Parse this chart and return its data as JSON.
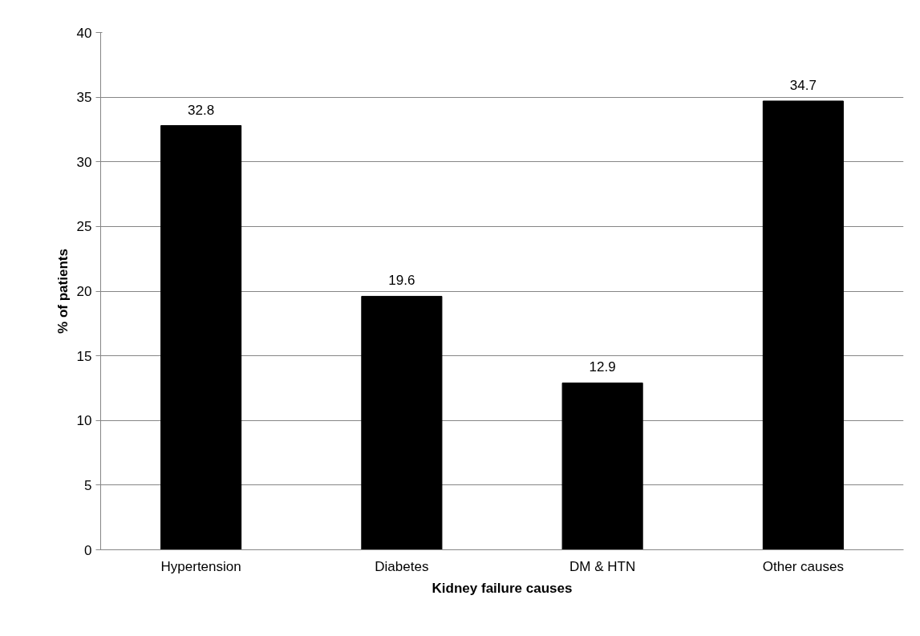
{
  "chart_data": {
    "type": "bar",
    "xlabel": "Kidney failure causes",
    "ylabel": "% of patients",
    "categories": [
      "Hypertension",
      "Diabetes",
      "DM & HTN",
      "Other causes"
    ],
    "series": [
      {
        "color": "#000000",
        "values": [
          32.8,
          19.6,
          12.9,
          34.7
        ]
      }
    ],
    "ylim": [
      0,
      40
    ],
    "yticks": [
      0,
      5,
      10,
      15,
      20,
      25,
      30,
      35,
      40
    ],
    "grid": "y",
    "data_labels": true
  }
}
